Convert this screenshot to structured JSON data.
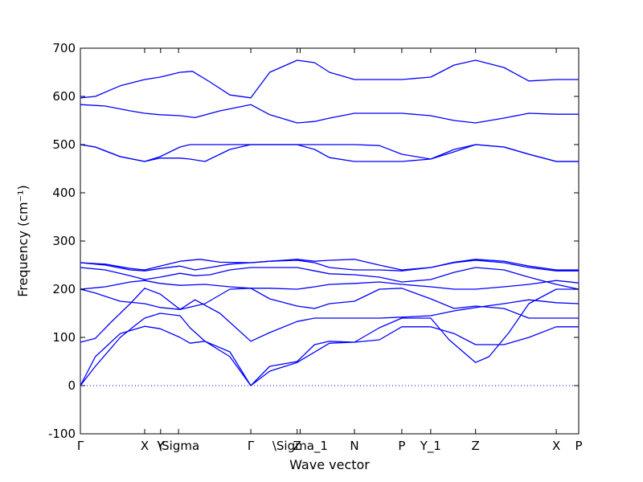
{
  "chart_data": {
    "type": "line",
    "xlabel": "Wave vector",
    "ylabel": "Frequency (cm⁻¹)",
    "ylim": [
      -100,
      700
    ],
    "yticks": [
      -100,
      0,
      100,
      200,
      300,
      400,
      500,
      600,
      700
    ],
    "xlim": [
      0,
      1
    ],
    "xticks": [
      {
        "x": 0.0,
        "label": "Γ"
      },
      {
        "x": 0.129,
        "label": "X"
      },
      {
        "x": 0.161,
        "label": "Y"
      },
      {
        "x": 0.197,
        "label": "\\Sigma"
      },
      {
        "x": 0.342,
        "label": "Γ"
      },
      {
        "x": 0.435,
        "label": "Z"
      },
      {
        "x": 0.441,
        "label": "\\Sigma_1"
      },
      {
        "x": 0.55,
        "label": "N"
      },
      {
        "x": 0.645,
        "label": "P"
      },
      {
        "x": 0.703,
        "label": "Y_1"
      },
      {
        "x": 0.793,
        "label": "Z"
      },
      {
        "x": 0.955,
        "label": "X"
      },
      {
        "x": 1.0,
        "label": "P"
      }
    ],
    "zero_line": {
      "y": 0,
      "style": "dotted",
      "color": "#0000ff"
    },
    "series_color": "#0000ff",
    "series": [
      {
        "x": [
          0,
          0.03,
          0.08,
          0.11,
          0.129,
          0.16,
          0.2,
          0.22,
          0.25,
          0.3,
          0.342,
          0.38,
          0.435,
          0.5,
          0.55,
          0.6,
          0.645,
          0.703,
          0.74,
          0.793,
          0.82,
          0.86,
          0.9,
          0.955,
          0.975,
          1.0
        ],
        "y": [
          0,
          40,
          100,
          125,
          140,
          150,
          145,
          120,
          92,
          60,
          0,
          30,
          48,
          88,
          90,
          120,
          140,
          140,
          95,
          48,
          60,
          110,
          170,
          200,
          200,
          200
        ]
      },
      {
        "x": [
          0,
          0.03,
          0.08,
          0.129,
          0.16,
          0.2,
          0.22,
          0.25,
          0.3,
          0.342,
          0.38,
          0.435,
          0.47,
          0.5,
          0.55,
          0.6,
          0.645,
          0.703,
          0.75,
          0.793,
          0.85,
          0.9,
          0.955,
          1.0
        ],
        "y": [
          0,
          60,
          108,
          123,
          118,
          100,
          88,
          92,
          70,
          0,
          40,
          50,
          85,
          92,
          90,
          95,
          122,
          122,
          108,
          85,
          85,
          100,
          122,
          122
        ]
      },
      {
        "x": [
          0,
          0.03,
          0.06,
          0.1,
          0.129,
          0.16,
          0.2,
          0.23,
          0.28,
          0.342,
          0.38,
          0.435,
          0.47,
          0.5,
          0.55,
          0.6,
          0.645,
          0.703,
          0.75,
          0.793,
          0.85,
          0.9,
          0.955,
          1.0
        ],
        "y": [
          90,
          98,
          130,
          170,
          202,
          190,
          158,
          178,
          150,
          92,
          110,
          133,
          140,
          140,
          140,
          140,
          142,
          145,
          155,
          162,
          170,
          178,
          172,
          170
        ]
      },
      {
        "x": [
          0,
          0.03,
          0.08,
          0.129,
          0.16,
          0.2,
          0.25,
          0.3,
          0.342,
          0.38,
          0.435,
          0.47,
          0.5,
          0.55,
          0.6,
          0.645,
          0.703,
          0.75,
          0.793,
          0.85,
          0.9,
          0.955,
          1.0
        ],
        "y": [
          200,
          192,
          175,
          170,
          162,
          158,
          170,
          200,
          202,
          180,
          165,
          160,
          170,
          175,
          200,
          202,
          180,
          160,
          165,
          160,
          140,
          140,
          140
        ]
      },
      {
        "x": [
          0,
          0.05,
          0.1,
          0.129,
          0.16,
          0.2,
          0.25,
          0.3,
          0.342,
          0.38,
          0.435,
          0.47,
          0.5,
          0.55,
          0.6,
          0.645,
          0.703,
          0.75,
          0.793,
          0.85,
          0.9,
          0.955,
          1.0
        ],
        "y": [
          200,
          205,
          215,
          218,
          212,
          208,
          210,
          205,
          202,
          202,
          200,
          205,
          210,
          212,
          215,
          210,
          205,
          200,
          200,
          205,
          210,
          218,
          213
        ]
      },
      {
        "x": [
          0,
          0.05,
          0.1,
          0.129,
          0.16,
          0.2,
          0.23,
          0.26,
          0.3,
          0.342,
          0.38,
          0.435,
          0.47,
          0.5,
          0.55,
          0.6,
          0.645,
          0.703,
          0.75,
          0.793,
          0.85,
          0.9,
          0.955,
          1.0
        ],
        "y": [
          245,
          240,
          228,
          220,
          225,
          233,
          228,
          230,
          240,
          245,
          245,
          245,
          238,
          232,
          230,
          225,
          215,
          220,
          235,
          245,
          240,
          225,
          210,
          200
        ]
      },
      {
        "x": [
          0,
          0.05,
          0.1,
          0.129,
          0.16,
          0.2,
          0.23,
          0.26,
          0.3,
          0.342,
          0.38,
          0.435,
          0.47,
          0.5,
          0.55,
          0.6,
          0.645,
          0.703,
          0.75,
          0.793,
          0.85,
          0.9,
          0.955,
          1.0
        ],
        "y": [
          255,
          250,
          240,
          238,
          243,
          248,
          240,
          245,
          252,
          255,
          258,
          260,
          255,
          245,
          240,
          240,
          238,
          245,
          255,
          260,
          255,
          245,
          238,
          238
        ]
      },
      {
        "x": [
          0,
          0.05,
          0.1,
          0.129,
          0.16,
          0.2,
          0.24,
          0.28,
          0.342,
          0.38,
          0.435,
          0.47,
          0.5,
          0.55,
          0.6,
          0.645,
          0.703,
          0.75,
          0.793,
          0.85,
          0.9,
          0.955,
          1.0
        ],
        "y": [
          255,
          252,
          243,
          240,
          248,
          258,
          262,
          256,
          255,
          258,
          262,
          258,
          260,
          262,
          250,
          240,
          245,
          256,
          262,
          258,
          248,
          240,
          240
        ]
      },
      {
        "x": [
          0,
          0.03,
          0.08,
          0.129,
          0.16,
          0.2,
          0.22,
          0.25,
          0.3,
          0.342,
          0.4,
          0.435,
          0.5,
          0.55,
          0.6,
          0.645,
          0.703,
          0.75,
          0.793,
          0.85,
          0.9,
          0.955,
          1.0
        ],
        "y": [
          500,
          495,
          475,
          465,
          472,
          472,
          470,
          465,
          490,
          500,
          500,
          500,
          500,
          500,
          498,
          480,
          470,
          485,
          500,
          495,
          480,
          465,
          465
        ]
      },
      {
        "x": [
          0,
          0.03,
          0.08,
          0.129,
          0.16,
          0.2,
          0.22,
          0.25,
          0.3,
          0.342,
          0.4,
          0.435,
          0.47,
          0.5,
          0.55,
          0.6,
          0.645,
          0.703,
          0.75,
          0.793,
          0.85,
          0.9,
          0.955,
          1.0
        ],
        "y": [
          500,
          495,
          475,
          465,
          475,
          495,
          500,
          500,
          500,
          500,
          500,
          500,
          490,
          473,
          465,
          465,
          465,
          470,
          490,
          500,
          495,
          480,
          465,
          465
        ]
      },
      {
        "x": [
          0,
          0.05,
          0.1,
          0.129,
          0.16,
          0.2,
          0.23,
          0.28,
          0.342,
          0.38,
          0.435,
          0.47,
          0.5,
          0.55,
          0.6,
          0.645,
          0.703,
          0.75,
          0.793,
          0.85,
          0.9,
          0.955,
          1.0
        ],
        "y": [
          583,
          580,
          570,
          565,
          562,
          560,
          556,
          570,
          583,
          562,
          545,
          548,
          555,
          565,
          565,
          565,
          560,
          550,
          545,
          555,
          565,
          563,
          563
        ]
      },
      {
        "x": [
          0,
          0.03,
          0.08,
          0.129,
          0.16,
          0.2,
          0.225,
          0.26,
          0.3,
          0.342,
          0.38,
          0.435,
          0.47,
          0.5,
          0.55,
          0.6,
          0.645,
          0.703,
          0.75,
          0.793,
          0.85,
          0.9,
          0.955,
          1.0
        ],
        "y": [
          597,
          600,
          622,
          635,
          640,
          650,
          652,
          630,
          603,
          597,
          650,
          675,
          670,
          650,
          635,
          635,
          635,
          640,
          665,
          675,
          660,
          632,
          635,
          635
        ]
      }
    ]
  }
}
